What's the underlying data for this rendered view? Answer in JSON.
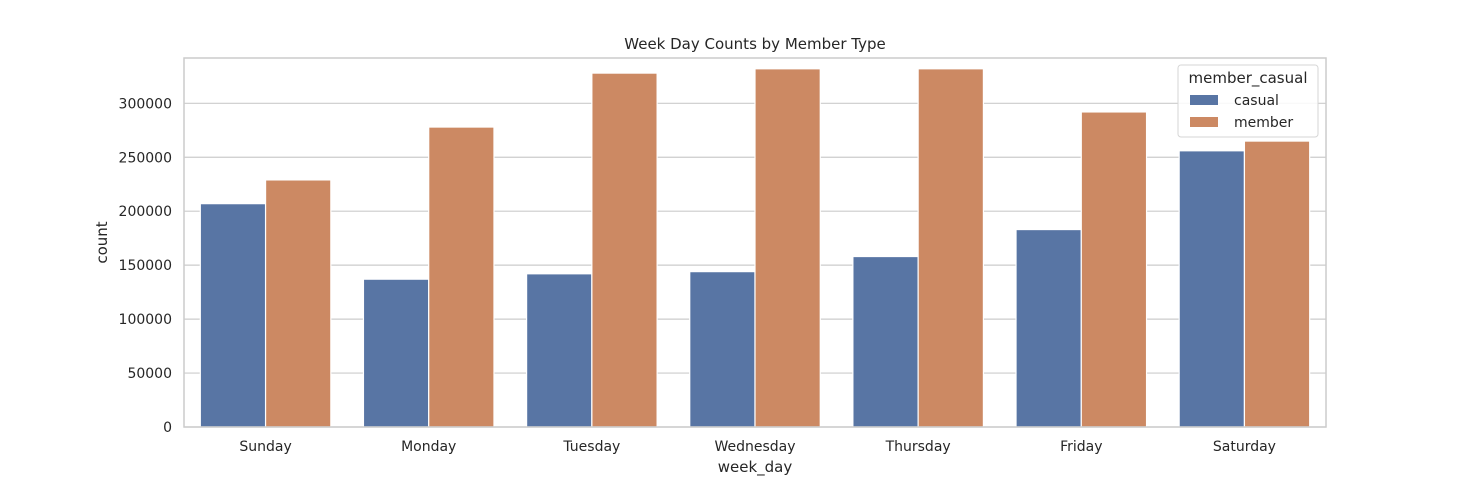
{
  "chart_data": {
    "type": "bar",
    "title": "Week Day Counts by Member Type",
    "xlabel": "week_day",
    "ylabel": "count",
    "categories": [
      "Sunday",
      "Monday",
      "Tuesday",
      "Wednesday",
      "Thursday",
      "Friday",
      "Saturday"
    ],
    "series": [
      {
        "name": "casual",
        "color": "#5875a4",
        "values": [
          207000,
          137000,
          142000,
          144000,
          158000,
          183000,
          256000
        ]
      },
      {
        "name": "member",
        "color": "#cc8963",
        "values": [
          229000,
          278000,
          328000,
          332000,
          332000,
          292000,
          265000
        ]
      }
    ],
    "ylim": [
      0,
      342000
    ],
    "yticks": [
      0,
      50000,
      100000,
      150000,
      200000,
      250000,
      300000
    ],
    "ytick_labels": [
      "0",
      "50000",
      "100000",
      "150000",
      "200000",
      "250000",
      "300000"
    ],
    "grid": "horizontal",
    "legend": {
      "title": "member_casual",
      "placement": "top-right"
    }
  }
}
